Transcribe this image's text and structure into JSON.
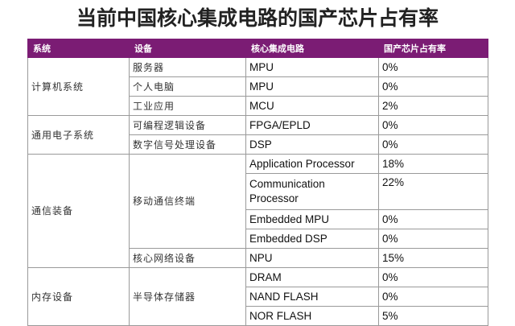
{
  "title": "当前中国核心集成电路的国产芯片占有率",
  "table": {
    "headers": [
      "系统",
      "设备",
      "核心集成电路",
      "国产芯片占有率"
    ],
    "groups": [
      {
        "system": "计算机系统",
        "devices": [
          {
            "device": "服务器",
            "chips": [
              {
                "chip": "MPU",
                "share": "0%"
              }
            ]
          },
          {
            "device": "个人电脑",
            "chips": [
              {
                "chip": "MPU",
                "share": "0%"
              }
            ]
          },
          {
            "device": "工业应用",
            "chips": [
              {
                "chip": "MCU",
                "share": "2%"
              }
            ]
          }
        ]
      },
      {
        "system": "通用电子系统",
        "devices": [
          {
            "device": "可编程逻辑设备",
            "chips": [
              {
                "chip": "FPGA/EPLD",
                "share": "0%"
              }
            ]
          },
          {
            "device": "数字信号处理设备",
            "chips": [
              {
                "chip": "DSP",
                "share": "0%"
              }
            ]
          }
        ]
      },
      {
        "system": "通信装备",
        "devices": [
          {
            "device": "移动通信终端",
            "chips": [
              {
                "chip": "Application Processor",
                "share": "18%"
              },
              {
                "chip": "Communication Processor",
                "share": "22%"
              },
              {
                "chip": "Embedded MPU",
                "share": "0%"
              },
              {
                "chip": "Embedded DSP",
                "share": "0%"
              }
            ]
          },
          {
            "device": "核心网络设备",
            "chips": [
              {
                "chip": "NPU",
                "share": "15%"
              }
            ]
          }
        ]
      },
      {
        "system": "内存设备",
        "devices": [
          {
            "device": "半导体存储器",
            "chips": [
              {
                "chip": "DRAM",
                "share": "0%"
              },
              {
                "chip": "NAND FLASH",
                "share": "0%"
              },
              {
                "chip": "NOR FLASH",
                "share": "5%"
              }
            ]
          }
        ]
      }
    ]
  }
}
